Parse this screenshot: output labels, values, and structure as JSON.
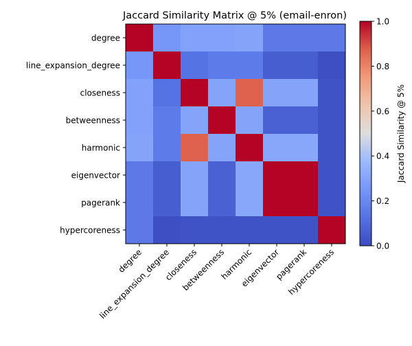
{
  "chart_data": {
    "type": "heatmap",
    "title": "Jaccard Similarity Matrix @ 5% (email-enron)",
    "xlabel": "",
    "ylabel": "",
    "categories": [
      "degree",
      "line_expansion_degree",
      "closeness",
      "betweenness",
      "harmonic",
      "eigenvector",
      "pagerank",
      "hypercoreness"
    ],
    "values": [
      [
        1.0,
        0.25,
        0.29,
        0.29,
        0.3,
        0.15,
        0.15,
        0.15
      ],
      [
        0.25,
        1.0,
        0.13,
        0.16,
        0.16,
        0.06,
        0.06,
        0.01
      ],
      [
        0.29,
        0.13,
        1.0,
        0.3,
        0.87,
        0.3,
        0.3,
        0.02
      ],
      [
        0.29,
        0.16,
        0.3,
        1.0,
        0.3,
        0.07,
        0.07,
        0.02
      ],
      [
        0.3,
        0.16,
        0.87,
        0.3,
        1.0,
        0.31,
        0.31,
        0.02
      ],
      [
        0.15,
        0.06,
        0.3,
        0.07,
        0.31,
        1.0,
        1.0,
        0.02
      ],
      [
        0.15,
        0.06,
        0.3,
        0.07,
        0.31,
        1.0,
        1.0,
        0.02
      ],
      [
        0.15,
        0.01,
        0.02,
        0.02,
        0.02,
        0.02,
        0.02,
        1.0
      ]
    ],
    "colormap": "coolwarm",
    "value_range": [
      0,
      1
    ],
    "colorbar": {
      "label": "Jaccard Similarity @ 5%",
      "ticks": [
        0.0,
        0.2,
        0.4,
        0.6,
        0.8,
        1.0
      ],
      "tick_labels": [
        "0.0",
        "0.2",
        "0.4",
        "0.6",
        "0.8",
        "1.0"
      ]
    },
    "x_tick_rotation": 45,
    "grid": false
  }
}
